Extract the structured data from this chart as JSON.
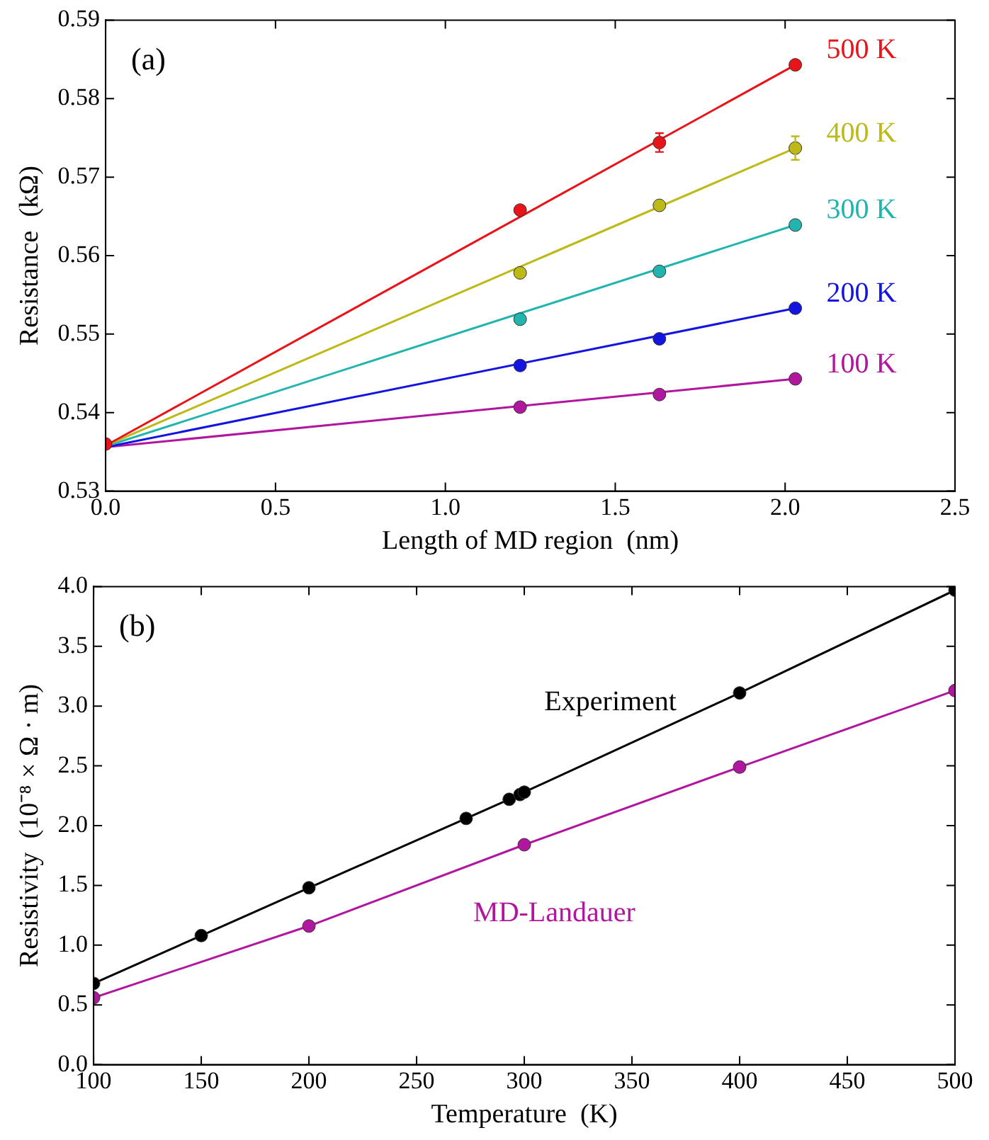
{
  "chart_data": [
    {
      "type": "scatter",
      "xlabel": "Length of MD region  (nm)",
      "ylabel": "Resistance  (kΩ)",
      "annotations": [
        "(a)"
      ],
      "xlim": [
        0,
        2.5
      ],
      "xticks": [
        {
          "value": 0,
          "label": "0.0"
        },
        0.5,
        {
          "value": 1,
          "label": "1.0"
        },
        1.5,
        {
          "value": 2,
          "label": "2.0"
        },
        2.5
      ],
      "ylim": [
        0.53,
        0.59
      ],
      "yticks": [
        0.53,
        0.54,
        0.55,
        0.56,
        0.57,
        0.58,
        0.59
      ],
      "grid": false,
      "legend": false,
      "marker": "circle",
      "series": [
        {
          "name": "500 K",
          "color": "#e8141a",
          "x": [
            0,
            1.22,
            1.63,
            2.03
          ],
          "values": [
            0.536,
            0.5658,
            0.5744,
            0.5843
          ],
          "errors": [
            null,
            null,
            0.0012,
            null
          ]
        },
        {
          "name": "400 K",
          "color": "#bdb916",
          "x": [
            1.22,
            1.63,
            2.03
          ],
          "values": [
            0.5578,
            0.5664,
            0.5737
          ],
          "errors": [
            null,
            null,
            0.0015
          ]
        },
        {
          "name": "300 K",
          "color": "#22b5b0",
          "x": [
            1.22,
            1.63,
            2.03
          ],
          "values": [
            0.5519,
            0.558,
            0.5639
          ]
        },
        {
          "name": "200 K",
          "color": "#1414e0",
          "x": [
            1.22,
            1.63,
            2.03
          ],
          "values": [
            0.546,
            0.5494,
            0.5533
          ]
        },
        {
          "name": "100 K",
          "color": "#b0169e",
          "x": [
            1.22,
            1.63,
            2.03
          ],
          "values": [
            0.5407,
            0.5423,
            0.5443
          ]
        },
        {
          "type": "line",
          "marker": "none",
          "color": "#e8141a",
          "x": [
            0,
            2.03
          ],
          "values": [
            0.5358,
            0.5843
          ]
        },
        {
          "type": "line",
          "marker": "none",
          "color": "#bdb916",
          "x": [
            0,
            2.03
          ],
          "values": [
            0.5358,
            0.5737
          ]
        },
        {
          "type": "line",
          "marker": "none",
          "color": "#22b5b0",
          "x": [
            0,
            2.03
          ],
          "values": [
            0.5357,
            0.5639
          ]
        },
        {
          "type": "line",
          "marker": "none",
          "color": "#1414e0",
          "x": [
            0,
            2.03
          ],
          "values": [
            0.5356,
            0.5533
          ]
        },
        {
          "type": "line",
          "marker": "none",
          "color": "#b0169e",
          "x": [
            0,
            2.03
          ],
          "values": [
            0.5356,
            0.5443
          ]
        }
      ]
    },
    {
      "type": "line",
      "xlabel": "Temperature  (K)",
      "ylabel": "Resistivity  (10⁻⁸ × Ω · m)",
      "annotations": [
        "(b)"
      ],
      "xlim": [
        100,
        500
      ],
      "xticks": [
        100,
        150,
        200,
        250,
        300,
        350,
        400,
        450,
        500
      ],
      "ylim": [
        0,
        4
      ],
      "yticks": [
        {
          "value": 0,
          "label": "0.0"
        },
        0.5,
        {
          "value": 1,
          "label": "1.0"
        },
        1.5,
        {
          "value": 2,
          "label": "2.0"
        },
        2.5,
        {
          "value": 3,
          "label": "3.0"
        },
        3.5,
        {
          "value": 4,
          "label": "4.0"
        }
      ],
      "grid": false,
      "legend": false,
      "marker": "circle",
      "series": [
        {
          "name": "Experiment",
          "color": "#000000",
          "x": [
            100,
            150,
            200,
            273,
            293,
            298,
            300,
            400,
            500
          ],
          "values": [
            0.68,
            1.08,
            1.48,
            2.06,
            2.22,
            2.26,
            2.28,
            3.11,
            3.97
          ]
        },
        {
          "name": "MD-Landauer",
          "color": "#b0169e",
          "x": [
            100,
            200,
            300,
            400,
            500
          ],
          "values": [
            0.56,
            1.16,
            1.84,
            2.49,
            3.13
          ]
        }
      ]
    }
  ]
}
